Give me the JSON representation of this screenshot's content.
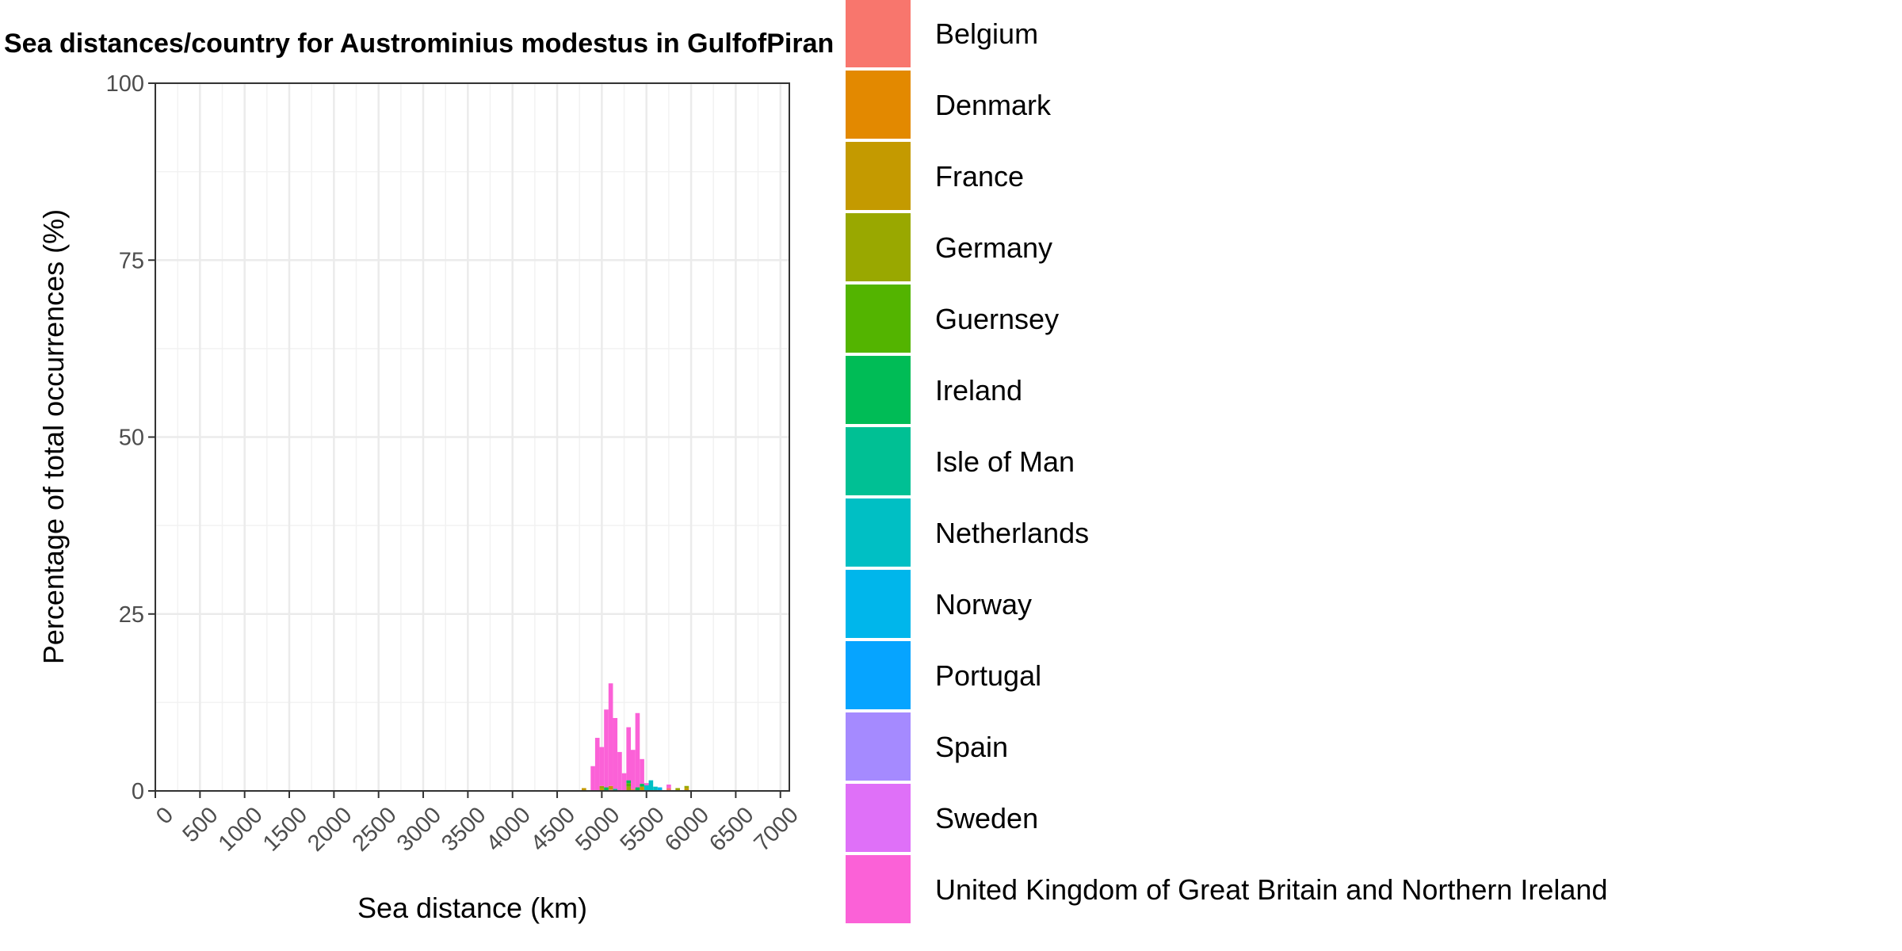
{
  "chart_data": {
    "type": "bar",
    "stacked": true,
    "title": "Sea distances/country for Austrominius modestus in GulfofPiran",
    "xlabel": "Sea distance (km)",
    "ylabel": "Percentage of total occurrences (%)",
    "xlim": [
      0,
      7100
    ],
    "ylim": [
      0,
      100
    ],
    "x_ticks": [
      "0",
      "500",
      "1000",
      "1500",
      "2000",
      "2500",
      "3000",
      "3500",
      "4000",
      "4500",
      "5000",
      "5500",
      "6000",
      "6500",
      "7000"
    ],
    "y_ticks": [
      "0",
      "25",
      "50",
      "75",
      "100"
    ],
    "grid": true,
    "legend_position": "right",
    "bin_width": 50,
    "series": [
      {
        "name": "Belgium",
        "color": "#F8766D",
        "x": [
          5100,
          5350,
          5750
        ],
        "values": [
          0.2,
          0.3,
          0.4
        ]
      },
      {
        "name": "Denmark",
        "color": "#E38900",
        "x": [],
        "values": []
      },
      {
        "name": "France",
        "color": "#C49A00",
        "x": [
          4800,
          5000,
          5100,
          5450,
          5950
        ],
        "values": [
          0.4,
          0.3,
          0.5,
          0.6,
          0.4
        ]
      },
      {
        "name": "Germany",
        "color": "#99A800",
        "x": [
          5000,
          5300,
          5850,
          5950
        ],
        "values": [
          0.4,
          0.6,
          0.4,
          0.3
        ]
      },
      {
        "name": "Guernsey",
        "color": "#53B400",
        "x": [
          5300
        ],
        "values": [
          0.5
        ]
      },
      {
        "name": "Ireland",
        "color": "#00BC56",
        "x": [
          5050,
          5300,
          5400,
          5450
        ],
        "values": [
          0.5,
          0.4,
          0.5,
          0.4
        ]
      },
      {
        "name": "Isle of Man",
        "color": "#00C094",
        "x": [
          5150
        ],
        "values": [
          0.3
        ]
      },
      {
        "name": "Netherlands",
        "color": "#00BFC4",
        "x": [
          5500,
          5550,
          5600
        ],
        "values": [
          0.8,
          1.5,
          0.6
        ]
      },
      {
        "name": "Norway",
        "color": "#00B6EB",
        "x": [
          5650
        ],
        "values": [
          0.5
        ]
      },
      {
        "name": "Portugal",
        "color": "#06A4FF",
        "x": [],
        "values": []
      },
      {
        "name": "Spain",
        "color": "#A58AFF",
        "x": [],
        "values": []
      },
      {
        "name": "Sweden",
        "color": "#DF70F8",
        "x": [],
        "values": []
      },
      {
        "name": "United Kingdom of Great Britain and Northern Ireland",
        "color": "#FB61D7",
        "x": [
          4900,
          4950,
          5000,
          5050,
          5100,
          5150,
          5200,
          5250,
          5300,
          5350,
          5400,
          5450,
          5500,
          5750
        ],
        "values": [
          3.5,
          7.5,
          5.5,
          11.0,
          14.5,
          10.0,
          5.5,
          2.5,
          7.5,
          5.5,
          10.5,
          3.5,
          0.3,
          0.5
        ]
      }
    ]
  }
}
